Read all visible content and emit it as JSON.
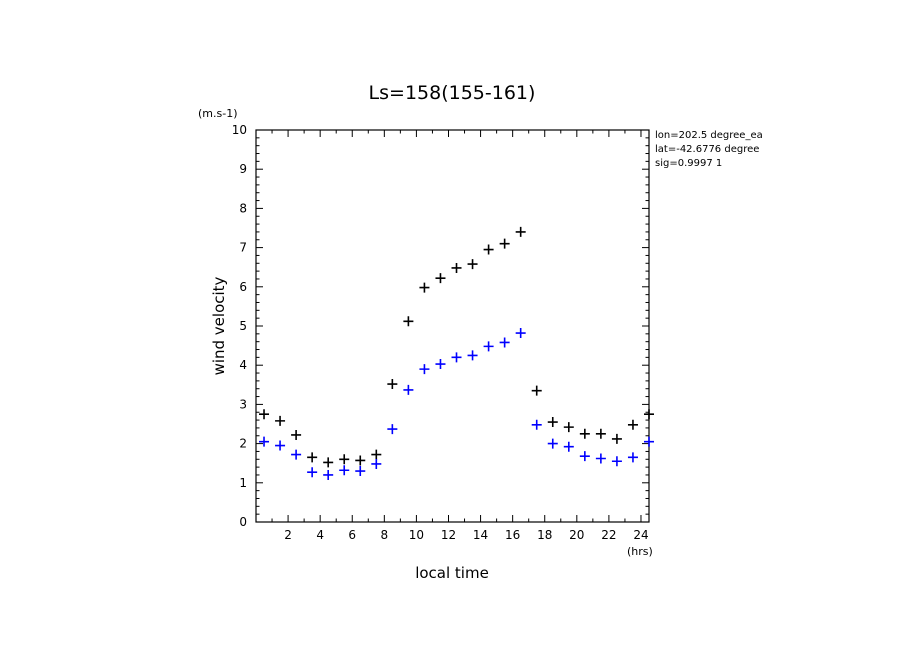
{
  "chart_data": {
    "type": "scatter",
    "title": "Ls=158(155-161)",
    "xlabel": "local time",
    "ylabel": "wind velocity",
    "x_unit": "(hrs)",
    "y_unit": "(m.s-1)",
    "xlim": [
      0,
      24.5
    ],
    "ylim": [
      0,
      10
    ],
    "xticks": [
      "2",
      "4",
      "6",
      "8",
      "10",
      "12",
      "14",
      "16",
      "18",
      "20",
      "22",
      "24"
    ],
    "yticks": [
      "0",
      "1",
      "2",
      "3",
      "4",
      "5",
      "6",
      "7",
      "8",
      "9",
      "10"
    ],
    "info_lines": [
      "lon=202.5 degree_ea",
      "lat=-42.6776 degree",
      "sig=0.9997 1"
    ],
    "x": [
      0.5,
      1.5,
      2.5,
      3.5,
      4.5,
      5.5,
      6.5,
      7.5,
      8.5,
      9.5,
      10.5,
      11.5,
      12.5,
      13.5,
      14.5,
      15.5,
      16.5,
      17.5,
      18.5,
      19.5,
      20.5,
      21.5,
      22.5,
      23.5,
      24.5
    ],
    "series": [
      {
        "color": "#000000",
        "values": [
          2.75,
          2.58,
          2.22,
          1.65,
          1.52,
          1.6,
          1.57,
          1.72,
          3.52,
          5.12,
          5.98,
          6.22,
          6.48,
          6.58,
          6.95,
          7.1,
          7.4,
          3.35,
          2.55,
          2.42,
          2.25,
          2.25,
          2.12,
          2.48,
          2.75
        ]
      },
      {
        "color": "#0000ff",
        "values": [
          2.05,
          1.95,
          1.72,
          1.27,
          1.2,
          1.32,
          1.3,
          1.48,
          2.37,
          3.37,
          3.9,
          4.03,
          4.2,
          4.25,
          4.48,
          4.58,
          4.82,
          2.48,
          2.0,
          1.92,
          1.68,
          1.62,
          1.55,
          1.65,
          2.05
        ]
      }
    ]
  }
}
